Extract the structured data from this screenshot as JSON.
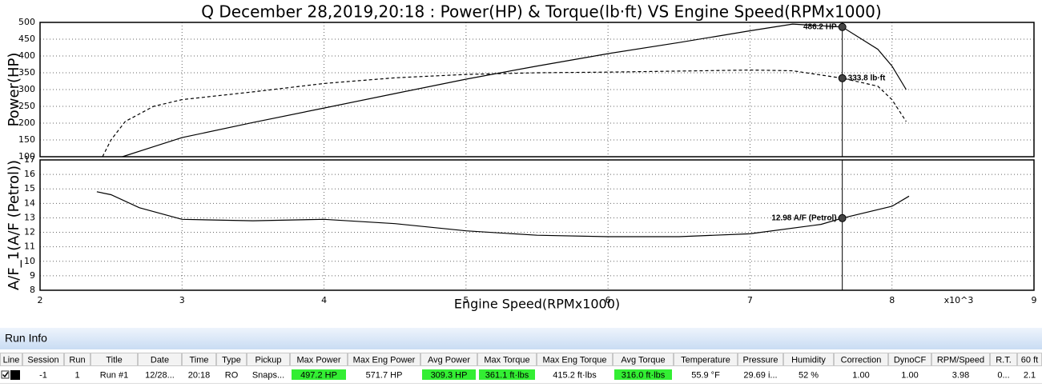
{
  "chart_data": [
    {
      "type": "line",
      "title": "Q December 28,2019,20:18  : Power(HP) & Torque(lb·ft) VS Engine Speed(RPMx1000)",
      "ylabel": "Power(HP)",
      "xlim": [
        2,
        9
      ],
      "xticks": [
        2,
        3,
        4,
        5,
        6,
        7,
        8,
        9
      ],
      "ylim": [
        100,
        500
      ],
      "yticks": [
        100,
        150,
        200,
        250,
        300,
        350,
        400,
        450,
        500
      ],
      "grid": true,
      "series": [
        {
          "color": "#000000",
          "style": "solid",
          "x": [
            2.58,
            2.8,
            3,
            3.5,
            4,
            4.5,
            5,
            5.5,
            6,
            6.5,
            7,
            7.3,
            7.65,
            7.9,
            8,
            8.1
          ],
          "values": [
            100,
            130,
            157,
            202,
            245,
            288,
            331,
            370,
            407,
            440,
            475,
            495,
            486.2,
            420,
            370,
            300
          ]
        },
        {
          "color": "#000000",
          "style": "dashed",
          "x": [
            2.44,
            2.5,
            2.6,
            2.8,
            3,
            3.5,
            4,
            4.5,
            5,
            5.5,
            6,
            6.5,
            7,
            7.3,
            7.65,
            7.9,
            8,
            8.1
          ],
          "values": [
            100,
            150,
            205,
            250,
            270,
            293,
            318,
            335,
            345,
            350,
            352,
            355,
            358,
            356,
            333.8,
            310,
            270,
            205
          ]
        }
      ],
      "cursor": {
        "x": 7.65,
        "color": "#000000",
        "points": [
          {
            "value": 486.2,
            "label": "486.2 HP"
          },
          {
            "value": 333.8,
            "label": "333.8 lb·ft"
          }
        ]
      }
    },
    {
      "type": "line",
      "ylabel": "A/F_1(A/F (Petrol))",
      "xlabel": "Engine Speed(RPMx1000)",
      "x_multiplier": "x10^3",
      "xlim": [
        2,
        9
      ],
      "xticks": [
        2,
        3,
        4,
        5,
        6,
        7,
        8,
        9
      ],
      "ylim": [
        8,
        17
      ],
      "yticks": [
        8,
        9,
        10,
        11,
        12,
        13,
        14,
        15,
        16,
        17
      ],
      "grid": true,
      "series": [
        {
          "color": "#000000",
          "style": "solid",
          "x": [
            2.4,
            2.5,
            2.7,
            3,
            3.5,
            4,
            4.5,
            5,
            5.5,
            6,
            6.5,
            7,
            7.5,
            7.65,
            8,
            8.12
          ],
          "values": [
            14.8,
            14.6,
            13.7,
            12.9,
            12.8,
            12.9,
            12.6,
            12.1,
            11.8,
            11.7,
            11.7,
            11.9,
            12.55,
            12.98,
            13.8,
            14.5
          ]
        }
      ],
      "cursor": {
        "x": 7.65,
        "color": "#000000",
        "points": [
          {
            "value": 12.98,
            "label": "12.98 A/F (Petrol)"
          }
        ]
      }
    }
  ],
  "panel": {
    "title": "Run Info"
  },
  "table": {
    "columns": [
      "Line",
      "Session",
      "Run",
      "Title",
      "Date",
      "Time",
      "Type",
      "Pickup",
      "Max Power",
      "Max Eng Power",
      "Avg Power",
      "Max Torque",
      "Max Eng Torque",
      "Avg Torque",
      "Temperature",
      "Pressure",
      "Humidity",
      "Correction",
      "DynoCF",
      "RPM/Speed",
      "R.T.",
      "60 ft"
    ],
    "rows": [
      [
        "-1",
        "1",
        "Run #1",
        "12/28...",
        "20:18",
        "RO",
        "Snaps...",
        {
          "text": "497.2 HP",
          "background": "#33ee33"
        },
        "571.7 HP",
        {
          "text": "309.3 HP",
          "background": "#33ee33"
        },
        {
          "text": "361.1 ft·lbs",
          "background": "#33ee33"
        },
        "415.2 ft·lbs",
        {
          "text": "316.0 ft·lbs",
          "background": "#33ee33"
        },
        "55.9 °F",
        "29.69 i...",
        "52 %",
        "1.00",
        "1.00",
        "3.98",
        "0...",
        "2.1"
      ]
    ]
  }
}
